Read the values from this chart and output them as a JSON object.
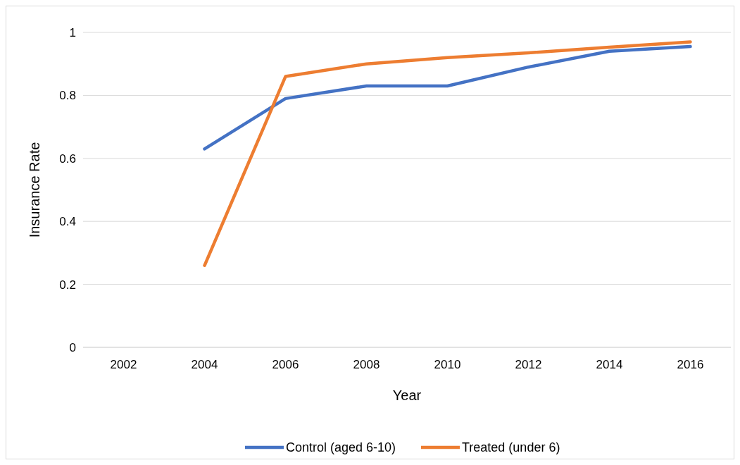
{
  "chart_data": {
    "type": "line",
    "xlabel": "Year",
    "ylabel": "Insurance Rate",
    "categories": [
      "2002",
      "2004",
      "2006",
      "2008",
      "2010",
      "2012",
      "2014",
      "2016"
    ],
    "series": [
      {
        "name": "Control (aged 6-10)",
        "color": "#4472c4",
        "values": [
          null,
          0.63,
          0.79,
          0.83,
          0.83,
          0.89,
          0.94,
          0.955
        ]
      },
      {
        "name": "Treated (under 6)",
        "color": "#ed7d31",
        "values": [
          null,
          0.26,
          0.86,
          0.9,
          0.92,
          0.935,
          0.953,
          0.97
        ]
      }
    ],
    "ylim": [
      0,
      1
    ],
    "yticks": [
      0,
      0.2,
      0.4,
      0.6,
      0.8,
      1
    ],
    "grid": "y",
    "legend": "bottom",
    "marker": "none",
    "line_style": "solid"
  }
}
